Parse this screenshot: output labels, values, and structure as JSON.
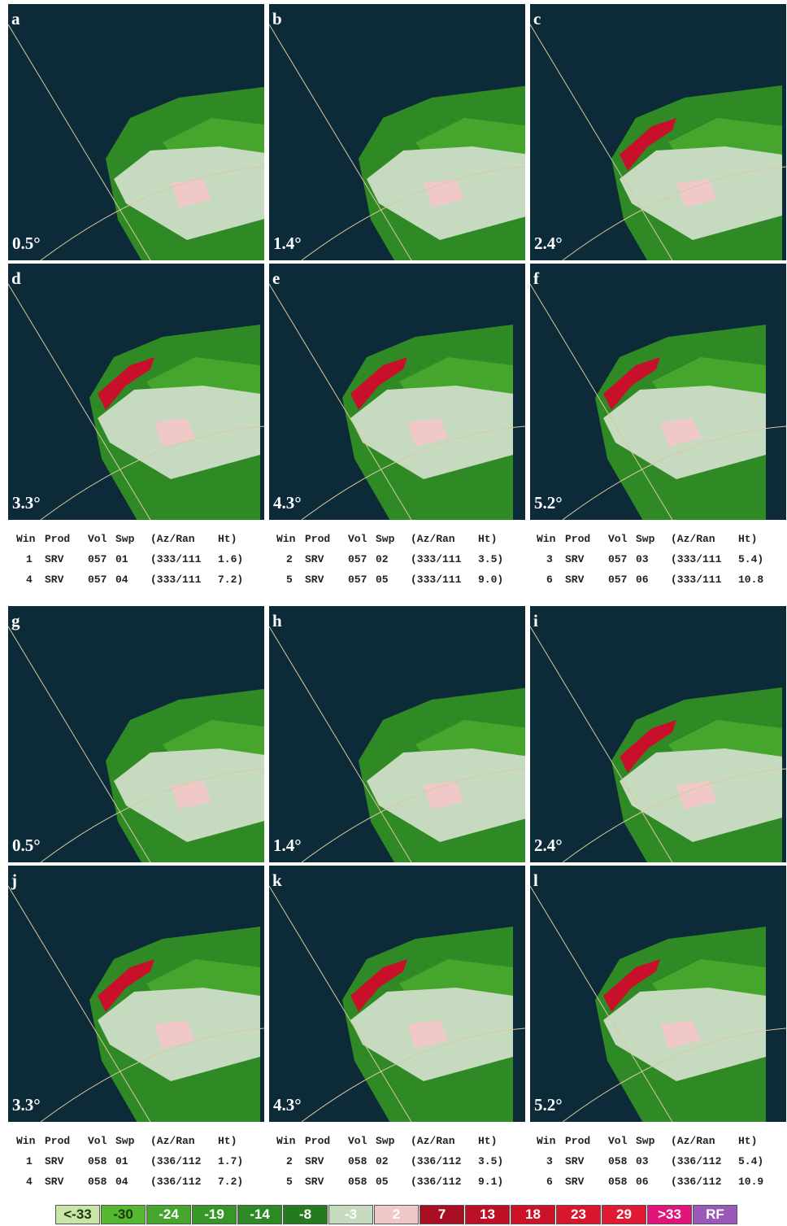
{
  "groups": [
    {
      "panels": [
        {
          "letter": "a",
          "elevation": "0.5°"
        },
        {
          "letter": "b",
          "elevation": "1.4°"
        },
        {
          "letter": "c",
          "elevation": "2.4°"
        },
        {
          "letter": "d",
          "elevation": "3.3°"
        },
        {
          "letter": "e",
          "elevation": "4.3°"
        },
        {
          "letter": "f",
          "elevation": "5.2°"
        }
      ],
      "table": {
        "header": [
          "Win",
          "Prod",
          "Vol",
          "Swp",
          "(Az/Ran",
          "Ht)"
        ],
        "rows": [
          [
            "1",
            "SRV",
            "057",
            "01",
            "(333/111",
            "1.6)"
          ],
          [
            "2",
            "SRV",
            "057",
            "02",
            "(333/111",
            "3.5)"
          ],
          [
            "3",
            "SRV",
            "057",
            "03",
            "(333/111",
            "5.4)"
          ],
          [
            "4",
            "SRV",
            "057",
            "04",
            "(333/111",
            "7.2)"
          ],
          [
            "5",
            "SRV",
            "057",
            "05",
            "(333/111",
            "9.0)"
          ],
          [
            "6",
            "SRV",
            "057",
            "06",
            "(333/111",
            "10.8"
          ]
        ]
      }
    },
    {
      "panels": [
        {
          "letter": "g",
          "elevation": "0.5°"
        },
        {
          "letter": "h",
          "elevation": "1.4°"
        },
        {
          "letter": "i",
          "elevation": "2.4°"
        },
        {
          "letter": "j",
          "elevation": "3.3°"
        },
        {
          "letter": "k",
          "elevation": "4.3°"
        },
        {
          "letter": "l",
          "elevation": "5.2°"
        }
      ],
      "table": {
        "header": [
          "Win",
          "Prod",
          "Vol",
          "Swp",
          "(Az/Ran",
          "Ht)"
        ],
        "rows": [
          [
            "1",
            "SRV",
            "058",
            "01",
            "(336/112",
            "1.7)"
          ],
          [
            "2",
            "SRV",
            "058",
            "02",
            "(336/112",
            "3.5)"
          ],
          [
            "3",
            "SRV",
            "058",
            "03",
            "(336/112",
            "5.4)"
          ],
          [
            "4",
            "SRV",
            "058",
            "04",
            "(336/112",
            "7.2)"
          ],
          [
            "5",
            "SRV",
            "058",
            "05",
            "(336/112",
            "9.1)"
          ],
          [
            "6",
            "SRV",
            "058",
            "06",
            "(336/112",
            "10.9"
          ]
        ]
      }
    }
  ],
  "legend": [
    {
      "label": "<-33",
      "color": "#c9e6a8",
      "text_color": "#1a3a10"
    },
    {
      "label": "-30",
      "color": "#56b830",
      "text_color": "#1a3a10"
    },
    {
      "label": "-24",
      "color": "#45a52c",
      "text_color": "#ffffff"
    },
    {
      "label": "-19",
      "color": "#379628",
      "text_color": "#ffffff"
    },
    {
      "label": "-14",
      "color": "#2e8824",
      "text_color": "#ffffff"
    },
    {
      "label": "-8",
      "color": "#257a1f",
      "text_color": "#ffffff"
    },
    {
      "label": "-3",
      "color": "#c6dac0",
      "text_color": "#ffffff"
    },
    {
      "label": "2",
      "color": "#f0c8c8",
      "text_color": "#ffffff"
    },
    {
      "label": "7",
      "color": "#a80e22",
      "text_color": "#ffffff"
    },
    {
      "label": "13",
      "color": "#bd1026",
      "text_color": "#ffffff"
    },
    {
      "label": "18",
      "color": "#cc1228",
      "text_color": "#ffffff"
    },
    {
      "label": "23",
      "color": "#d8162e",
      "text_color": "#ffffff"
    },
    {
      "label": "29",
      "color": "#e01a34",
      "text_color": "#ffffff"
    },
    {
      "label": ">33",
      "color": "#e0147a",
      "text_color": "#ffffff"
    },
    {
      "label": "RF",
      "color": "#9a58b8",
      "text_color": "#ffffff"
    }
  ]
}
